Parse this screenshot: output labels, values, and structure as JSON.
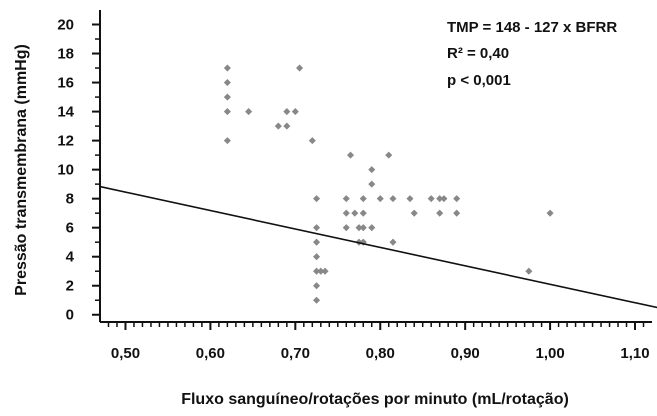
{
  "chart_data": {
    "type": "scatter",
    "title": "",
    "xlabel": "Fluxo sanguíneo/rotações por minuto (mL/rotação)",
    "ylabel": "Pressão transmembrana (mmHg)",
    "xlim": [
      0.47,
      1.12
    ],
    "ylim": [
      -0.5,
      21
    ],
    "x_ticks": [
      "0,50",
      "0,60",
      "0,70",
      "0,80",
      "0,90",
      "1,00",
      "1,10"
    ],
    "x_tick_values": [
      0.5,
      0.6,
      0.7,
      0.8,
      0.9,
      1.0,
      1.1
    ],
    "y_ticks": [
      "0",
      "2",
      "4",
      "6",
      "8",
      "10",
      "12",
      "14",
      "16",
      "18",
      "20"
    ],
    "y_tick_values": [
      0,
      2,
      4,
      6,
      8,
      10,
      12,
      14,
      16,
      18,
      20
    ],
    "grid": false,
    "legend": "none",
    "annotations": [
      "TMP = 148 - 127 x BFRR",
      "R² = 0,40",
      "p < 0,001"
    ],
    "regression": {
      "intercept": 148,
      "slope": -127,
      "scale": 0.1
    },
    "marker_color": "#888888",
    "line_color": "#111111",
    "points": [
      {
        "x": 0.62,
        "y": 17
      },
      {
        "x": 0.62,
        "y": 16
      },
      {
        "x": 0.62,
        "y": 15
      },
      {
        "x": 0.62,
        "y": 14
      },
      {
        "x": 0.62,
        "y": 12
      },
      {
        "x": 0.645,
        "y": 14
      },
      {
        "x": 0.68,
        "y": 13
      },
      {
        "x": 0.69,
        "y": 13
      },
      {
        "x": 0.69,
        "y": 14
      },
      {
        "x": 0.7,
        "y": 14
      },
      {
        "x": 0.705,
        "y": 17
      },
      {
        "x": 0.72,
        "y": 12
      },
      {
        "x": 0.725,
        "y": 8
      },
      {
        "x": 0.725,
        "y": 6
      },
      {
        "x": 0.725,
        "y": 5
      },
      {
        "x": 0.725,
        "y": 4
      },
      {
        "x": 0.725,
        "y": 3
      },
      {
        "x": 0.725,
        "y": 2
      },
      {
        "x": 0.725,
        "y": 1
      },
      {
        "x": 0.73,
        "y": 3
      },
      {
        "x": 0.735,
        "y": 3
      },
      {
        "x": 0.76,
        "y": 8
      },
      {
        "x": 0.76,
        "y": 7
      },
      {
        "x": 0.76,
        "y": 6
      },
      {
        "x": 0.765,
        "y": 11
      },
      {
        "x": 0.77,
        "y": 7
      },
      {
        "x": 0.775,
        "y": 6
      },
      {
        "x": 0.775,
        "y": 5
      },
      {
        "x": 0.78,
        "y": 8
      },
      {
        "x": 0.78,
        "y": 7
      },
      {
        "x": 0.78,
        "y": 6
      },
      {
        "x": 0.78,
        "y": 5
      },
      {
        "x": 0.79,
        "y": 10
      },
      {
        "x": 0.79,
        "y": 9
      },
      {
        "x": 0.79,
        "y": 6
      },
      {
        "x": 0.8,
        "y": 8
      },
      {
        "x": 0.81,
        "y": 11
      },
      {
        "x": 0.815,
        "y": 8
      },
      {
        "x": 0.815,
        "y": 5
      },
      {
        "x": 0.835,
        "y": 8
      },
      {
        "x": 0.84,
        "y": 7
      },
      {
        "x": 0.86,
        "y": 8
      },
      {
        "x": 0.87,
        "y": 8
      },
      {
        "x": 0.87,
        "y": 7
      },
      {
        "x": 0.875,
        "y": 8
      },
      {
        "x": 0.89,
        "y": 8
      },
      {
        "x": 0.89,
        "y": 7
      },
      {
        "x": 0.975,
        "y": 3
      },
      {
        "x": 1.0,
        "y": 7
      }
    ]
  }
}
